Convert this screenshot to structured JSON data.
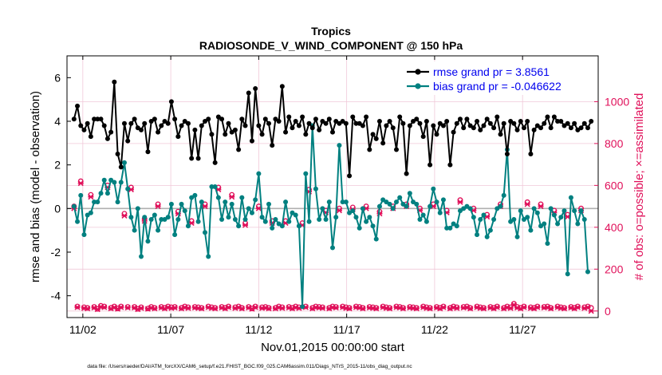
{
  "chart_data": {
    "type": "line",
    "title": "Tropics",
    "subtitle": "RADIOSONDE_V_WIND_COMPONENT @ 150 hPa",
    "xlabel": "Nov.01,2015 00:00:00 start",
    "ylabel_left": "rmse and bias (model - observation)",
    "ylabel_right": "# of obs: o=possible; ×=assimilated",
    "footnote": "data file: /Users/raeder/DAI/ATM_forcXX/CAM6_setup/f.e21.FHIST_BGC.f09_025.CAM6assim.011/Diags_NTrS_2015-11/obs_diag_output.nc",
    "xlim": [
      0.6,
      30.8
    ],
    "ylim_left": [
      -5,
      7
    ],
    "ylim_right": [
      -31.25,
      1218.75
    ],
    "x_ticks": [
      1.5,
      6.5,
      11.5,
      16.5,
      21.5,
      26.5
    ],
    "x_tick_labels": [
      "11/02",
      "11/07",
      "11/12",
      "11/17",
      "11/22",
      "11/27"
    ],
    "y_left_ticks": [
      -4,
      -2,
      0,
      2,
      4,
      6
    ],
    "y_left_tick_labels": [
      "-4",
      "-2",
      "0",
      "2",
      "4",
      "6"
    ],
    "y_right_ticks": [
      0,
      200,
      400,
      600,
      800,
      1000
    ],
    "y_right_tick_labels": [
      "0",
      "200",
      "400",
      "600",
      "800",
      "1000"
    ],
    "legend_position": "top-right",
    "colors": {
      "rmse": "#000000",
      "bias": "#008080",
      "obs": "#e0105a",
      "zero_line": "#b0b0b0",
      "grid": "#f0c8d8"
    },
    "series": [
      {
        "name": "rmse grand pr = 3.8561",
        "values": [
          4.1,
          4.7,
          3.8,
          3.6,
          3.9,
          3.3,
          4.1,
          4.1,
          4.1,
          3.8,
          3.2,
          3.5,
          5.8,
          2.5,
          1.9,
          3.9,
          3.1,
          3.9,
          4.1,
          3.7,
          3.6,
          3.9,
          2.6,
          4.0,
          4.1,
          3.5,
          3.8,
          4.0,
          3.9,
          4.9,
          4.1,
          3.3,
          3.8,
          4.0,
          3.9,
          2.3,
          3.6,
          2.3,
          3.8,
          4.0,
          4.1,
          3.4,
          2.1,
          4.2,
          4.1,
          3.4,
          3.9,
          3.5,
          3.6,
          2.7,
          4.1,
          3.8,
          5.3,
          3.1,
          5.5,
          3.8,
          3.4,
          4.1,
          3.9,
          2.9,
          4.1,
          4.0,
          5.6,
          3.5,
          4.2,
          3.7,
          4.0,
          3.8,
          4.2,
          3.4,
          3.9,
          3.7,
          4.1,
          3.6,
          4.0,
          3.9,
          4.1,
          3.5,
          4.0,
          3.9,
          4.0,
          3.9,
          1.5,
          4.2,
          3.9,
          3.9,
          3.8,
          4.2,
          2.7,
          3.4,
          3.2,
          4.0,
          3.0,
          3.8,
          4.0,
          3.7,
          2.7,
          4.2,
          3.9,
          1.6,
          3.8,
          4.0,
          4.1,
          3.9,
          3.3,
          4.0,
          2.0,
          3.8,
          3.4,
          3.9,
          3.8,
          4.0,
          2.0,
          3.5,
          3.9,
          4.1,
          3.7,
          4.1,
          3.8,
          3.7,
          4.0,
          3.6,
          3.8,
          4.1,
          3.9,
          3.7,
          4.2,
          3.4,
          3.9,
          2.5,
          4.0,
          3.9,
          3.6,
          4.0,
          3.7,
          4.0,
          2.5,
          3.6,
          3.8,
          3.7,
          3.9,
          4.2,
          3.7,
          4.2,
          4.0,
          4.0,
          3.8,
          3.9,
          3.7,
          3.9,
          3.6,
          3.7,
          3.9,
          3.7,
          4.0
        ]
      },
      {
        "name": "bias grand pr = -0.046622",
        "values": [
          0.1,
          -0.6,
          0.6,
          -1.2,
          -0.3,
          -0.2,
          0.3,
          0.3,
          0.7,
          1.3,
          0.7,
          1.3,
          1.2,
          0.3,
          1.2,
          2.1,
          0.9,
          -0.4,
          -1.0,
          0.0,
          -2.2,
          -0.4,
          -1.5,
          -0.5,
          -0.3,
          -1.0,
          -0.5,
          -0.5,
          -0.4,
          0.2,
          -1.2,
          -0.5,
          0.2,
          -0.1,
          -0.8,
          0.5,
          0.6,
          -0.6,
          0.3,
          -1.1,
          -2.2,
          1.0,
          1.0,
          0.5,
          -0.5,
          0.3,
          -0.4,
          0.2,
          -0.5,
          -0.8,
          0.5,
          -0.5,
          0.0,
          -0.2,
          0.4,
          1.6,
          -0.4,
          -0.6,
          0.2,
          -0.9,
          -0.5,
          -0.7,
          -0.8,
          0.3,
          -0.6,
          -0.2,
          -0.3,
          -0.8,
          -4.5,
          1.6,
          -0.6,
          3.8,
          0.9,
          -0.5,
          0.0,
          -0.5,
          0.3,
          -1.8,
          -0.4,
          2.9,
          0.3,
          0.3,
          -0.2,
          -0.1,
          -0.4,
          -0.9,
          0.0,
          -0.6,
          -0.4,
          -0.8,
          -1.4,
          0.1,
          0.4,
          0.3,
          0.2,
          0.0,
          0.3,
          0.5,
          0.2,
          0.1,
          0.7,
          0.3,
          0.2,
          -0.5,
          -0.3,
          -0.6,
          0.1,
          0.9,
          0.3,
          -0.2,
          0.4,
          -0.9,
          -0.9,
          -0.7,
          -0.8,
          -0.1,
          0.0,
          0.1,
          0.0,
          -0.4,
          -1.2,
          -0.5,
          -0.3,
          -1.3,
          -1.0,
          -0.5,
          0.0,
          0.1,
          0.6,
          2.7,
          -0.6,
          -0.5,
          -1.3,
          -0.1,
          -0.5,
          -0.4,
          -1.0,
          0.0,
          -0.2,
          -0.8,
          -0.7,
          -1.6,
          0.0,
          -0.3,
          -0.7,
          -0.4,
          -0.1,
          -3.0,
          0.5,
          -0.1,
          -0.7,
          -0.1,
          -0.5,
          -2.9
        ]
      },
      {
        "name": "observations possible",
        "values": [
          500,
          22,
          620,
          18,
          15,
          555,
          20,
          10,
          25,
          22,
          600,
          15,
          22,
          12,
          22,
          465,
          20,
          590,
          20,
          10,
          18,
          440,
          12,
          20,
          15,
          510,
          20,
          15,
          22,
          18,
          20,
          475,
          15,
          22,
          18,
          430,
          20,
          18,
          15,
          510,
          22,
          18,
          15,
          590,
          20,
          15,
          22,
          555,
          18,
          22,
          15,
          420,
          20,
          12,
          22,
          500,
          18,
          20,
          15,
          430,
          15,
          22,
          18,
          430,
          20,
          15,
          22,
          18,
          420,
          22,
          580,
          15,
          22,
          20,
          18,
          480,
          15,
          22,
          20,
          490,
          22,
          18,
          15,
          495,
          22,
          20,
          15,
          500,
          20,
          18,
          15,
          475,
          22,
          18,
          15,
          500,
          22,
          20,
          15,
          510,
          20,
          18,
          15,
          490,
          22,
          18,
          15,
          510,
          20,
          15,
          22,
          480,
          15,
          22,
          18,
          530,
          20,
          22,
          15,
          490,
          22,
          18,
          15,
          460,
          20,
          15,
          22,
          510,
          15,
          22,
          18,
          35,
          20,
          15,
          22,
          520,
          18,
          15,
          22,
          510,
          20,
          22,
          15,
          480,
          22,
          18,
          15,
          460,
          20,
          15,
          22,
          490,
          18,
          22,
          15
        ]
      },
      {
        "name": "observations assimilated",
        "values": [
          490,
          18,
          610,
          14,
          12,
          545,
          16,
          8,
          20,
          18,
          590,
          12,
          18,
          10,
          18,
          455,
          16,
          580,
          16,
          8,
          14,
          430,
          10,
          16,
          12,
          500,
          16,
          12,
          18,
          14,
          16,
          465,
          12,
          18,
          14,
          420,
          16,
          14,
          12,
          500,
          18,
          14,
          12,
          580,
          16,
          12,
          18,
          545,
          14,
          18,
          12,
          410,
          16,
          10,
          18,
          490,
          14,
          16,
          12,
          420,
          12,
          18,
          14,
          420,
          16,
          12,
          18,
          14,
          410,
          18,
          570,
          12,
          18,
          16,
          14,
          470,
          12,
          18,
          16,
          480,
          18,
          14,
          12,
          485,
          18,
          16,
          12,
          490,
          16,
          14,
          12,
          465,
          18,
          14,
          12,
          490,
          18,
          16,
          12,
          500,
          16,
          14,
          12,
          480,
          18,
          14,
          12,
          500,
          16,
          12,
          18,
          470,
          12,
          18,
          14,
          520,
          16,
          18,
          12,
          480,
          18,
          14,
          12,
          450,
          16,
          12,
          18,
          500,
          12,
          18,
          14,
          30,
          16,
          12,
          18,
          510,
          14,
          12,
          18,
          500,
          16,
          18,
          12,
          470,
          18,
          14,
          12,
          450,
          16,
          12,
          18,
          480,
          14,
          18,
          0
        ]
      }
    ]
  }
}
